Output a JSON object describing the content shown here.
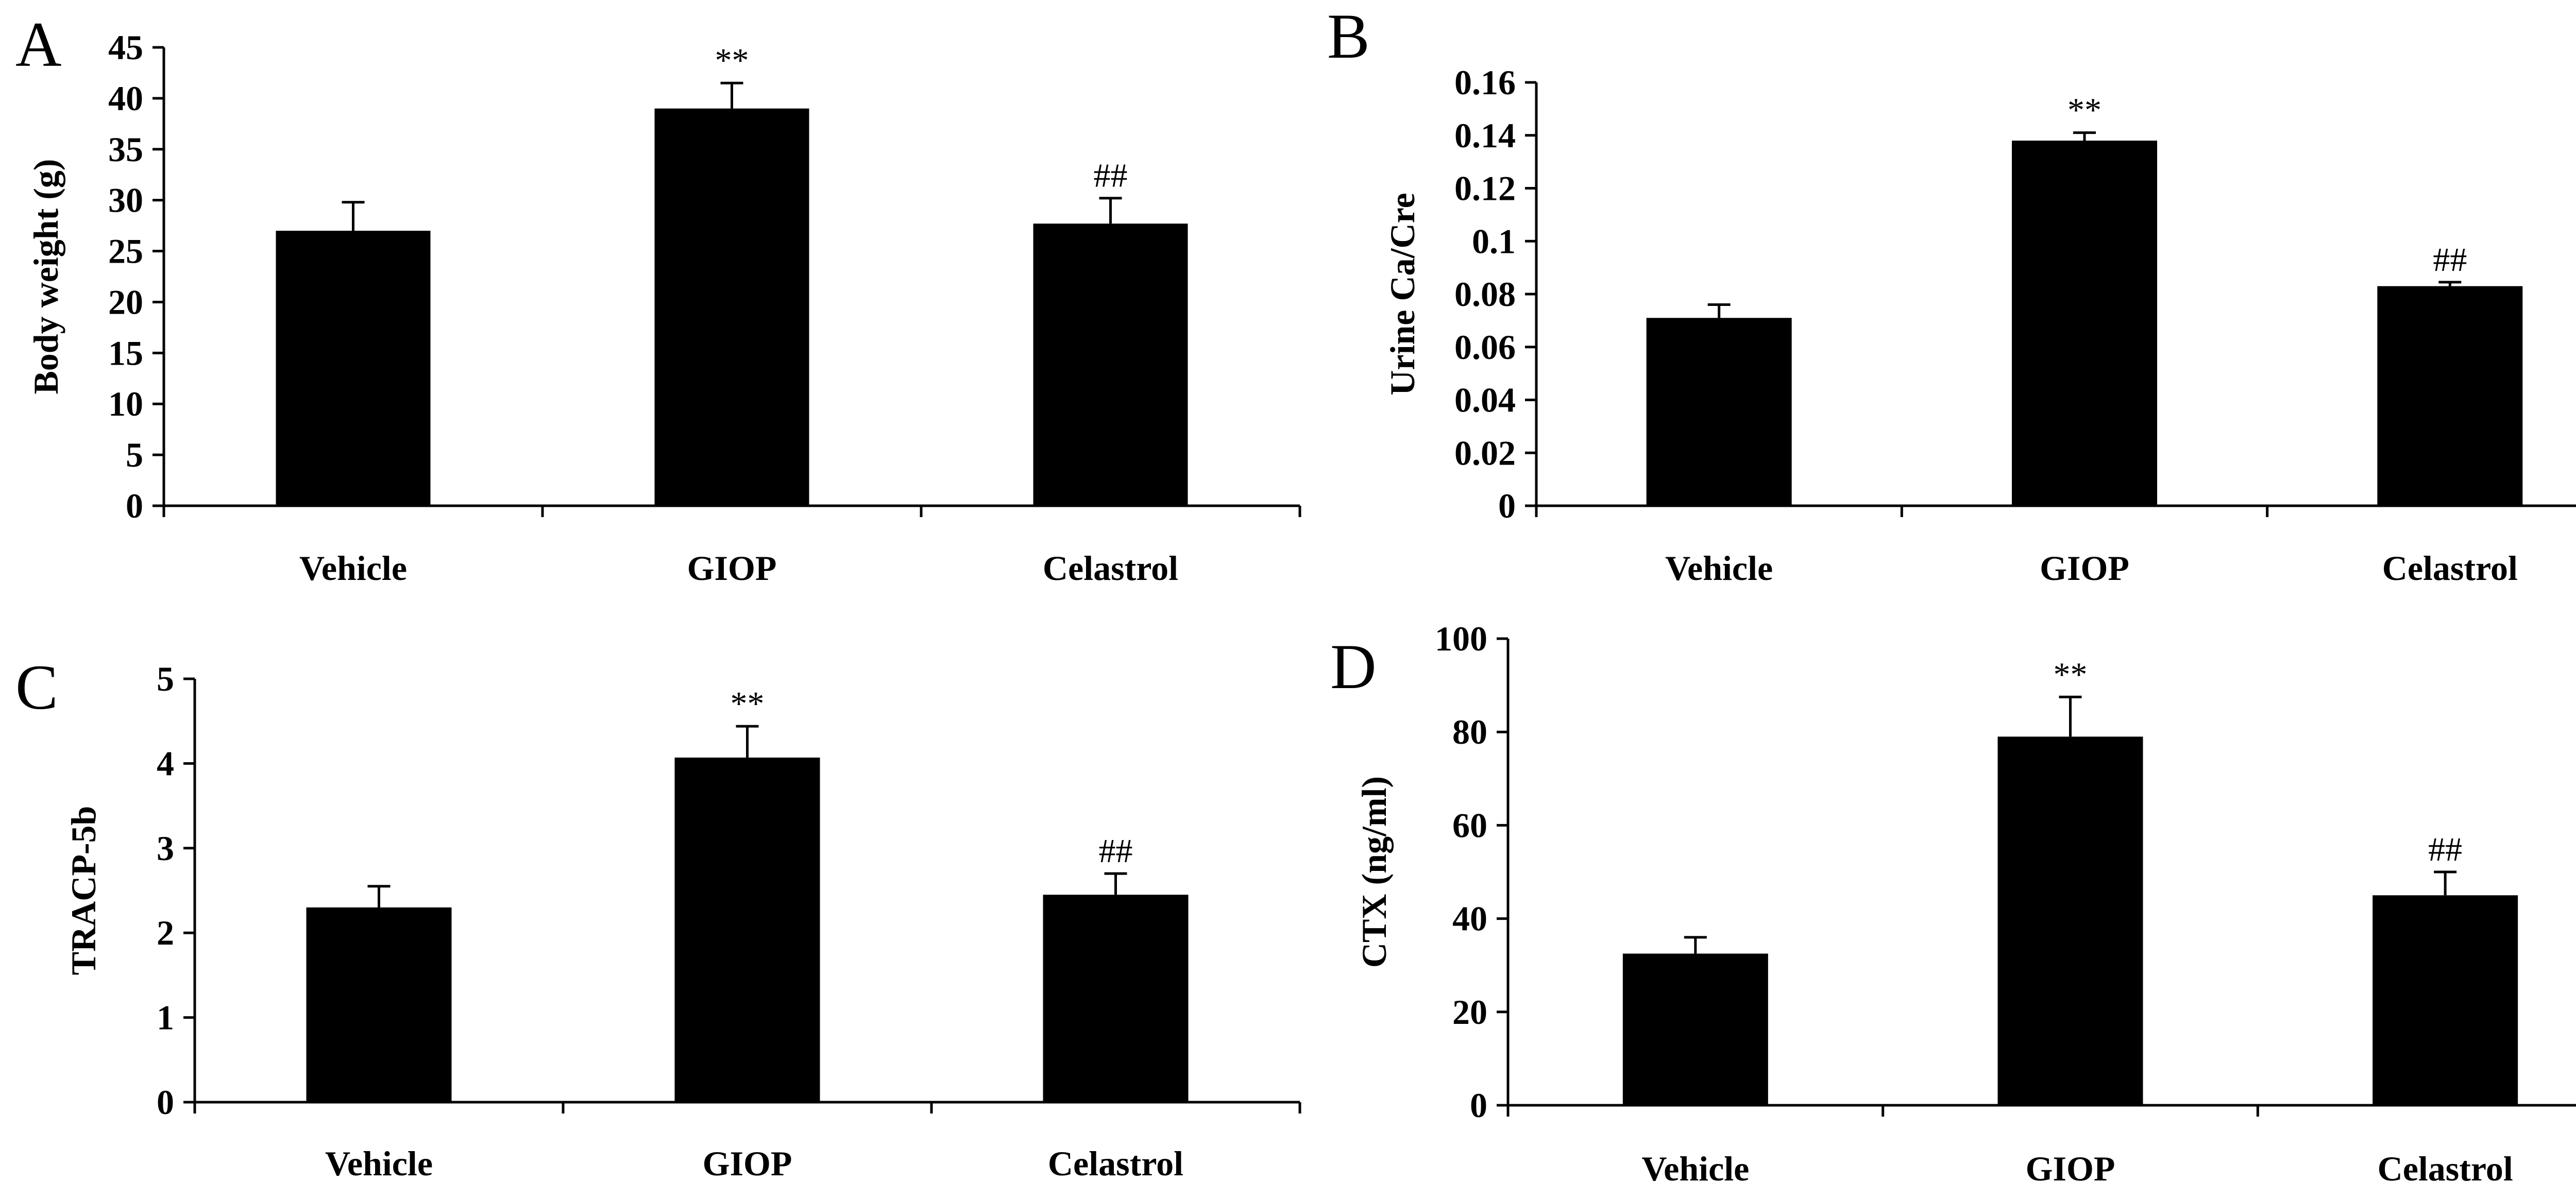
{
  "figure": {
    "colors": {
      "bar": "#000000",
      "axis": "#000000",
      "background": "#ffffff"
    }
  },
  "chart_data": [
    {
      "panel": "A",
      "type": "bar",
      "categories": [
        "Vehicle",
        "GIOP",
        "Celastrol"
      ],
      "values": [
        27.0,
        39.0,
        27.7
      ],
      "errors": [
        2.8,
        2.5,
        2.5
      ],
      "annotations": [
        "",
        "**",
        "##"
      ],
      "ylabel": "Body weight (g)",
      "xlabel": "",
      "ylim": [
        0,
        45
      ],
      "yticks": [
        0,
        5,
        10,
        15,
        20,
        25,
        30,
        35,
        40,
        45
      ],
      "ytick_labels": [
        "0",
        "5",
        "10",
        "15",
        "20",
        "25",
        "30",
        "35",
        "40",
        "45"
      ],
      "grid": false
    },
    {
      "panel": "B",
      "type": "bar",
      "categories": [
        "Vehicle",
        "GIOP",
        "Celastrol"
      ],
      "values": [
        0.071,
        0.138,
        0.083
      ],
      "errors": [
        0.005,
        0.003,
        0.0015
      ],
      "annotations": [
        "",
        "**",
        "##"
      ],
      "ylabel": "Urine Ca/Cre",
      "xlabel": "",
      "ylim": [
        0,
        0.16
      ],
      "yticks": [
        0,
        0.02,
        0.04,
        0.06,
        0.08,
        0.1,
        0.12,
        0.14,
        0.16
      ],
      "ytick_labels": [
        "0",
        "0.02",
        "0.04",
        "0.06",
        "0.08",
        "0.1",
        "0.12",
        "0.14",
        "0.16"
      ],
      "grid": false
    },
    {
      "panel": "C",
      "type": "bar",
      "categories": [
        "Vehicle",
        "GIOP",
        "Celastrol"
      ],
      "values": [
        2.3,
        4.07,
        2.45
      ],
      "errors": [
        0.25,
        0.37,
        0.25
      ],
      "annotations": [
        "",
        "**",
        "##"
      ],
      "ylabel": "TRACP-5b",
      "xlabel": "",
      "ylim": [
        0,
        5
      ],
      "yticks": [
        0,
        1,
        2,
        3,
        4,
        5
      ],
      "ytick_labels": [
        "0",
        "1",
        "2",
        "3",
        "4",
        "5"
      ],
      "grid": false
    },
    {
      "panel": "D",
      "type": "bar",
      "categories": [
        "Vehicle",
        "GIOP",
        "Celastrol"
      ],
      "values": [
        32.5,
        79.0,
        45.0
      ],
      "errors": [
        3.5,
        8.5,
        5.0
      ],
      "annotations": [
        "",
        "**",
        "##"
      ],
      "ylabel": "CTX (ng/ml)",
      "xlabel": "",
      "ylim": [
        0,
        100
      ],
      "yticks": [
        0,
        20,
        40,
        60,
        80,
        100
      ],
      "ytick_labels": [
        "0",
        "20",
        "40",
        "60",
        "80",
        "100"
      ],
      "grid": false
    }
  ]
}
